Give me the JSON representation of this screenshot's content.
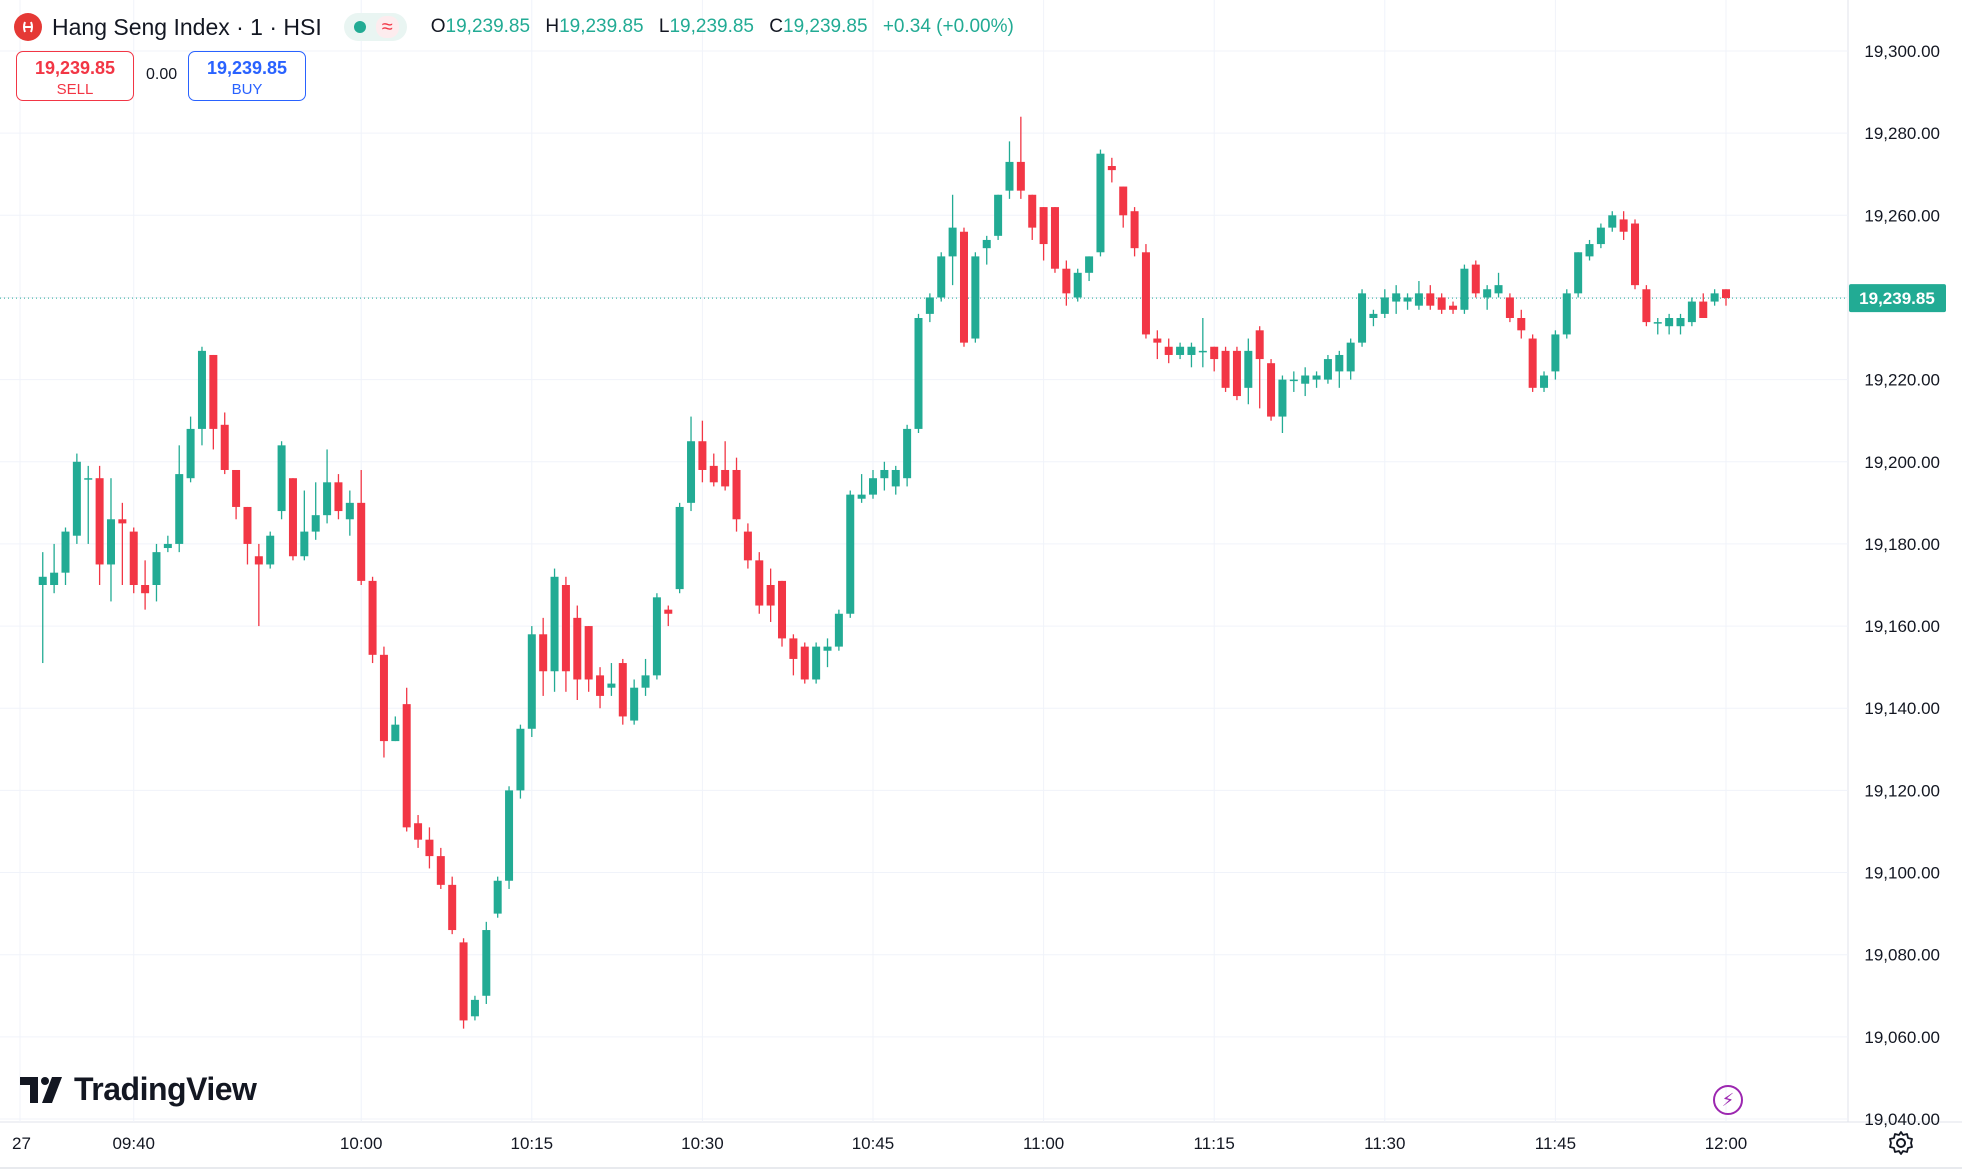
{
  "header": {
    "title": "Hang Seng Index · 1 · HSI",
    "ohlc": {
      "o_label": "O",
      "o": "19,239.85",
      "h_label": "H",
      "h": "19,239.85",
      "l_label": "L",
      "l": "19,239.85",
      "c_label": "C",
      "c": "19,239.85",
      "change": "+0.34 (+0.00%)"
    }
  },
  "trade": {
    "sell_price": "19,239.85",
    "sell_label": "SELL",
    "spread": "0.00",
    "buy_price": "19,239.85",
    "buy_label": "BUY"
  },
  "branding": {
    "logo_text": "TradingView"
  },
  "colors": {
    "up": "#22ab94",
    "down": "#f23645",
    "grid": "#f0f3fa",
    "last_price_bg": "#22ab94"
  },
  "icons": [
    "hsi-logo-icon",
    "market-status-icon",
    "flash-icon",
    "settings-icon",
    "tradingview-logo-icon"
  ],
  "chart_data": {
    "type": "candlestick",
    "title": "Hang Seng Index · 1 · HSI",
    "interval": "1",
    "ylim": [
      19040,
      19300
    ],
    "y_ticks": [
      19040,
      19060,
      19080,
      19100,
      19120,
      19140,
      19160,
      19180,
      19200,
      19220,
      19240,
      19260,
      19280,
      19300
    ],
    "y_tick_labels": [
      "19,040.00",
      "19,060.00",
      "19,080.00",
      "19,100.00",
      "19,120.00",
      "19,140.00",
      "19,160.00",
      "19,180.00",
      "19,200.00",
      "19,220.00",
      "19,240.00",
      "19,260.00",
      "19,280.00",
      "19,300.00"
    ],
    "x_tick_labels": [
      {
        "label": "27",
        "time": "09:30"
      },
      {
        "label": "09:40",
        "time": "09:40"
      },
      {
        "label": "10:00",
        "time": "10:00"
      },
      {
        "label": "10:15",
        "time": "10:15"
      },
      {
        "label": "10:30",
        "time": "10:30"
      },
      {
        "label": "10:45",
        "time": "10:45"
      },
      {
        "label": "11:00",
        "time": "11:00"
      },
      {
        "label": "11:15",
        "time": "11:15"
      },
      {
        "label": "11:30",
        "time": "11:30"
      },
      {
        "label": "11:45",
        "time": "11:45"
      },
      {
        "label": "12:00",
        "time": "12:00"
      }
    ],
    "last_price": 19239.85,
    "last_price_label": "19,239.85",
    "grid": true,
    "candles": [
      {
        "t": "09:32",
        "o": 19170,
        "h": 19178,
        "l": 19151,
        "c": 19172
      },
      {
        "t": "09:33",
        "o": 19170,
        "h": 19180,
        "l": 19168,
        "c": 19173
      },
      {
        "t": "09:34",
        "o": 19173,
        "h": 19184,
        "l": 19170,
        "c": 19183
      },
      {
        "t": "09:35",
        "o": 19182,
        "h": 19202,
        "l": 19180,
        "c": 19200
      },
      {
        "t": "09:36",
        "o": 19196,
        "h": 19199,
        "l": 19180,
        "c": 19196
      },
      {
        "t": "09:37",
        "o": 19196,
        "h": 19199,
        "l": 19170,
        "c": 19175
      },
      {
        "t": "09:38",
        "o": 19175,
        "h": 19196,
        "l": 19166,
        "c": 19186
      },
      {
        "t": "09:39",
        "o": 19186,
        "h": 19190,
        "l": 19170,
        "c": 19185
      },
      {
        "t": "09:40",
        "o": 19183,
        "h": 19184,
        "l": 19168,
        "c": 19170
      },
      {
        "t": "09:41",
        "o": 19170,
        "h": 19176,
        "l": 19164,
        "c": 19168
      },
      {
        "t": "09:42",
        "o": 19170,
        "h": 19180,
        "l": 19166,
        "c": 19178
      },
      {
        "t": "09:43",
        "o": 19179,
        "h": 19182,
        "l": 19178,
        "c": 19180
      },
      {
        "t": "09:44",
        "o": 19180,
        "h": 19204,
        "l": 19178,
        "c": 19197
      },
      {
        "t": "09:45",
        "o": 19196,
        "h": 19211,
        "l": 19195,
        "c": 19208
      },
      {
        "t": "09:46",
        "o": 19208,
        "h": 19228,
        "l": 19204,
        "c": 19227
      },
      {
        "t": "09:47",
        "o": 19226,
        "h": 19226,
        "l": 19203,
        "c": 19208
      },
      {
        "t": "09:48",
        "o": 19209,
        "h": 19212,
        "l": 19197,
        "c": 19198
      },
      {
        "t": "09:49",
        "o": 19198,
        "h": 19198,
        "l": 19186,
        "c": 19189
      },
      {
        "t": "09:50",
        "o": 19189,
        "h": 19189,
        "l": 19175,
        "c": 19180
      },
      {
        "t": "09:51",
        "o": 19177,
        "h": 19180,
        "l": 19160,
        "c": 19175
      },
      {
        "t": "09:52",
        "o": 19175,
        "h": 19183,
        "l": 19174,
        "c": 19182
      },
      {
        "t": "09:53",
        "o": 19188,
        "h": 19205,
        "l": 19186,
        "c": 19204
      },
      {
        "t": "09:54",
        "o": 19196,
        "h": 19196,
        "l": 19176,
        "c": 19177
      },
      {
        "t": "09:55",
        "o": 19177,
        "h": 19193,
        "l": 19176,
        "c": 19183
      },
      {
        "t": "09:56",
        "o": 19183,
        "h": 19195,
        "l": 19181,
        "c": 19187
      },
      {
        "t": "09:57",
        "o": 19187,
        "h": 19203,
        "l": 19185,
        "c": 19195
      },
      {
        "t": "09:58",
        "o": 19195,
        "h": 19197,
        "l": 19186,
        "c": 19188
      },
      {
        "t": "09:59",
        "o": 19186,
        "h": 19193,
        "l": 19182,
        "c": 19190
      },
      {
        "t": "10:00",
        "o": 19190,
        "h": 19198,
        "l": 19170,
        "c": 19171
      },
      {
        "t": "10:01",
        "o": 19171,
        "h": 19172,
        "l": 19151,
        "c": 19153
      },
      {
        "t": "10:02",
        "o": 19153,
        "h": 19155,
        "l": 19128,
        "c": 19132
      },
      {
        "t": "10:03",
        "o": 19132,
        "h": 19138,
        "l": 19132,
        "c": 19136
      },
      {
        "t": "10:04",
        "o": 19141,
        "h": 19145,
        "l": 19110,
        "c": 19111
      },
      {
        "t": "10:05",
        "o": 19112,
        "h": 19114,
        "l": 19106,
        "c": 19108
      },
      {
        "t": "10:06",
        "o": 19108,
        "h": 19111,
        "l": 19101,
        "c": 19104
      },
      {
        "t": "10:07",
        "o": 19104,
        "h": 19106,
        "l": 19096,
        "c": 19097
      },
      {
        "t": "10:08",
        "o": 19097,
        "h": 19099,
        "l": 19085,
        "c": 19086
      },
      {
        "t": "10:09",
        "o": 19083,
        "h": 19084,
        "l": 19062,
        "c": 19064
      },
      {
        "t": "10:10",
        "o": 19065,
        "h": 19070,
        "l": 19064,
        "c": 19069
      },
      {
        "t": "10:11",
        "o": 19070,
        "h": 19088,
        "l": 19068,
        "c": 19086
      },
      {
        "t": "10:12",
        "o": 19090,
        "h": 19099,
        "l": 19089,
        "c": 19098
      },
      {
        "t": "10:13",
        "o": 19098,
        "h": 19121,
        "l": 19096,
        "c": 19120
      },
      {
        "t": "10:14",
        "o": 19120,
        "h": 19136,
        "l": 19118,
        "c": 19135
      },
      {
        "t": "10:15",
        "o": 19135,
        "h": 19160,
        "l": 19133,
        "c": 19158
      },
      {
        "t": "10:16",
        "o": 19158,
        "h": 19162,
        "l": 19143,
        "c": 19149
      },
      {
        "t": "10:17",
        "o": 19149,
        "h": 19174,
        "l": 19144,
        "c": 19172
      },
      {
        "t": "10:18",
        "o": 19170,
        "h": 19172,
        "l": 19144,
        "c": 19149
      },
      {
        "t": "10:19",
        "o": 19162,
        "h": 19165,
        "l": 19142,
        "c": 19147
      },
      {
        "t": "10:20",
        "o": 19160,
        "h": 19160,
        "l": 19144,
        "c": 19147
      },
      {
        "t": "10:21",
        "o": 19148,
        "h": 19150,
        "l": 19140,
        "c": 19143
      },
      {
        "t": "10:22",
        "o": 19145,
        "h": 19151,
        "l": 19143,
        "c": 19146
      },
      {
        "t": "10:23",
        "o": 19151,
        "h": 19152,
        "l": 19136,
        "c": 19138
      },
      {
        "t": "10:24",
        "o": 19137,
        "h": 19147,
        "l": 19136,
        "c": 19145
      },
      {
        "t": "10:25",
        "o": 19145,
        "h": 19152,
        "l": 19143,
        "c": 19148
      },
      {
        "t": "10:26",
        "o": 19148,
        "h": 19168,
        "l": 19147,
        "c": 19167
      },
      {
        "t": "10:27",
        "o": 19164,
        "h": 19165,
        "l": 19160,
        "c": 19163
      },
      {
        "t": "10:28",
        "o": 19169,
        "h": 19190,
        "l": 19168,
        "c": 19189
      },
      {
        "t": "10:29",
        "o": 19190,
        "h": 19211,
        "l": 19188,
        "c": 19205
      },
      {
        "t": "10:30",
        "o": 19205,
        "h": 19210,
        "l": 19195,
        "c": 19198
      },
      {
        "t": "10:31",
        "o": 19199,
        "h": 19202,
        "l": 19194,
        "c": 19195
      },
      {
        "t": "10:32",
        "o": 19198,
        "h": 19205,
        "l": 19193,
        "c": 19194
      },
      {
        "t": "10:33",
        "o": 19198,
        "h": 19201,
        "l": 19183,
        "c": 19186
      },
      {
        "t": "10:34",
        "o": 19183,
        "h": 19185,
        "l": 19174,
        "c": 19176
      },
      {
        "t": "10:35",
        "o": 19176,
        "h": 19178,
        "l": 19163,
        "c": 19165
      },
      {
        "t": "10:36",
        "o": 19170,
        "h": 19174,
        "l": 19161,
        "c": 19165
      },
      {
        "t": "10:37",
        "o": 19171,
        "h": 19171,
        "l": 19155,
        "c": 19157
      },
      {
        "t": "10:38",
        "o": 19157,
        "h": 19158,
        "l": 19148,
        "c": 19152
      },
      {
        "t": "10:39",
        "o": 19155,
        "h": 19156,
        "l": 19146,
        "c": 19147
      },
      {
        "t": "10:40",
        "o": 19147,
        "h": 19156,
        "l": 19146,
        "c": 19155
      },
      {
        "t": "10:41",
        "o": 19154,
        "h": 19157,
        "l": 19150,
        "c": 19155
      },
      {
        "t": "10:42",
        "o": 19155,
        "h": 19164,
        "l": 19154,
        "c": 19163
      },
      {
        "t": "10:43",
        "o": 19163,
        "h": 19193,
        "l": 19162,
        "c": 19192
      },
      {
        "t": "10:44",
        "o": 19191,
        "h": 19197,
        "l": 19190,
        "c": 19192
      },
      {
        "t": "10:45",
        "o": 19192,
        "h": 19198,
        "l": 19191,
        "c": 19196
      },
      {
        "t": "10:46",
        "o": 19196,
        "h": 19200,
        "l": 19193,
        "c": 19198
      },
      {
        "t": "10:47",
        "o": 19194,
        "h": 19199,
        "l": 19192,
        "c": 19198
      },
      {
        "t": "10:48",
        "o": 19196,
        "h": 19209,
        "l": 19194,
        "c": 19208
      },
      {
        "t": "10:49",
        "o": 19208,
        "h": 19236,
        "l": 19207,
        "c": 19235
      },
      {
        "t": "10:50",
        "o": 19236,
        "h": 19241,
        "l": 19234,
        "c": 19240
      },
      {
        "t": "10:51",
        "o": 19240,
        "h": 19251,
        "l": 19239,
        "c": 19250
      },
      {
        "t": "10:52",
        "o": 19250,
        "h": 19265,
        "l": 19243,
        "c": 19257
      },
      {
        "t": "10:53",
        "o": 19256,
        "h": 19257,
        "l": 19228,
        "c": 19229
      },
      {
        "t": "10:54",
        "o": 19230,
        "h": 19251,
        "l": 19229,
        "c": 19250
      },
      {
        "t": "10:55",
        "o": 19252,
        "h": 19255,
        "l": 19248,
        "c": 19254
      },
      {
        "t": "10:56",
        "o": 19255,
        "h": 19265,
        "l": 19254,
        "c": 19265
      },
      {
        "t": "10:57",
        "o": 19266,
        "h": 19278,
        "l": 19264,
        "c": 19273
      },
      {
        "t": "10:58",
        "o": 19273,
        "h": 19284,
        "l": 19264,
        "c": 19266
      },
      {
        "t": "10:59",
        "o": 19265,
        "h": 19265,
        "l": 19254,
        "c": 19257
      },
      {
        "t": "11:00",
        "o": 19262,
        "h": 19262,
        "l": 19249,
        "c": 19253
      },
      {
        "t": "11:01",
        "o": 19262,
        "h": 19262,
        "l": 19246,
        "c": 19247
      },
      {
        "t": "11:02",
        "o": 19247,
        "h": 19249,
        "l": 19238,
        "c": 19241
      },
      {
        "t": "11:03",
        "o": 19240,
        "h": 19247,
        "l": 19239,
        "c": 19246
      },
      {
        "t": "11:04",
        "o": 19246,
        "h": 19250,
        "l": 19244,
        "c": 19250
      },
      {
        "t": "11:05",
        "o": 19251,
        "h": 19276,
        "l": 19250,
        "c": 19275
      },
      {
        "t": "11:06",
        "o": 19272,
        "h": 19274,
        "l": 19268,
        "c": 19271
      },
      {
        "t": "11:07",
        "o": 19267,
        "h": 19267,
        "l": 19257,
        "c": 19260
      },
      {
        "t": "11:08",
        "o": 19261,
        "h": 19262,
        "l": 19250,
        "c": 19252
      },
      {
        "t": "11:09",
        "o": 19251,
        "h": 19253,
        "l": 19230,
        "c": 19231
      },
      {
        "t": "11:10",
        "o": 19230,
        "h": 19232,
        "l": 19225,
        "c": 19229
      },
      {
        "t": "11:11",
        "o": 19228,
        "h": 19230,
        "l": 19224,
        "c": 19226
      },
      {
        "t": "11:12",
        "o": 19226,
        "h": 19229,
        "l": 19225,
        "c": 19228
      },
      {
        "t": "11:13",
        "o": 19226,
        "h": 19229,
        "l": 19223,
        "c": 19228
      },
      {
        "t": "11:14",
        "o": 19227,
        "h": 19235,
        "l": 19223,
        "c": 19227
      },
      {
        "t": "11:15",
        "o": 19228,
        "h": 19228,
        "l": 19222,
        "c": 19225
      },
      {
        "t": "11:16",
        "o": 19227,
        "h": 19228,
        "l": 19217,
        "c": 19218
      },
      {
        "t": "11:17",
        "o": 19227,
        "h": 19228,
        "l": 19215,
        "c": 19216
      },
      {
        "t": "11:18",
        "o": 19218,
        "h": 19230,
        "l": 19214,
        "c": 19227
      },
      {
        "t": "11:19",
        "o": 19232,
        "h": 19233,
        "l": 19213,
        "c": 19225
      },
      {
        "t": "11:20",
        "o": 19224,
        "h": 19225,
        "l": 19210,
        "c": 19211
      },
      {
        "t": "11:21",
        "o": 19211,
        "h": 19221,
        "l": 19207,
        "c": 19220
      },
      {
        "t": "11:22",
        "o": 19220,
        "h": 19222,
        "l": 19217,
        "c": 19220
      },
      {
        "t": "11:23",
        "o": 19219,
        "h": 19223,
        "l": 19216,
        "c": 19221
      },
      {
        "t": "11:24",
        "o": 19220,
        "h": 19222,
        "l": 19218,
        "c": 19221
      },
      {
        "t": "11:25",
        "o": 19220,
        "h": 19226,
        "l": 19219,
        "c": 19225
      },
      {
        "t": "11:26",
        "o": 19222,
        "h": 19227,
        "l": 19218,
        "c": 19226
      },
      {
        "t": "11:27",
        "o": 19222,
        "h": 19230,
        "l": 19220,
        "c": 19229
      },
      {
        "t": "11:28",
        "o": 19229,
        "h": 19242,
        "l": 19228,
        "c": 19241
      },
      {
        "t": "11:29",
        "o": 19235,
        "h": 19237,
        "l": 19233,
        "c": 19236
      },
      {
        "t": "11:30",
        "o": 19236,
        "h": 19242,
        "l": 19235,
        "c": 19240
      },
      {
        "t": "11:31",
        "o": 19239,
        "h": 19243,
        "l": 19236,
        "c": 19241
      },
      {
        "t": "11:32",
        "o": 19239,
        "h": 19241,
        "l": 19237,
        "c": 19240
      },
      {
        "t": "11:33",
        "o": 19238,
        "h": 19244,
        "l": 19237,
        "c": 19241
      },
      {
        "t": "11:34",
        "o": 19241,
        "h": 19243,
        "l": 19237,
        "c": 19238
      },
      {
        "t": "11:35",
        "o": 19240,
        "h": 19241,
        "l": 19236,
        "c": 19237
      },
      {
        "t": "11:36",
        "o": 19238,
        "h": 19239,
        "l": 19236,
        "c": 19237
      },
      {
        "t": "11:37",
        "o": 19237,
        "h": 19248,
        "l": 19236,
        "c": 19247
      },
      {
        "t": "11:38",
        "o": 19248,
        "h": 19249,
        "l": 19240,
        "c": 19241
      },
      {
        "t": "11:39",
        "o": 19240,
        "h": 19243,
        "l": 19237,
        "c": 19242
      },
      {
        "t": "11:40",
        "o": 19241,
        "h": 19246,
        "l": 19240,
        "c": 19243
      },
      {
        "t": "11:41",
        "o": 19240,
        "h": 19241,
        "l": 19234,
        "c": 19235
      },
      {
        "t": "11:42",
        "o": 19235,
        "h": 19237,
        "l": 19230,
        "c": 19232
      },
      {
        "t": "11:43",
        "o": 19230,
        "h": 19231,
        "l": 19217,
        "c": 19218
      },
      {
        "t": "11:44",
        "o": 19218,
        "h": 19222,
        "l": 19217,
        "c": 19221
      },
      {
        "t": "11:45",
        "o": 19222,
        "h": 19232,
        "l": 19220,
        "c": 19231
      },
      {
        "t": "11:46",
        "o": 19231,
        "h": 19242,
        "l": 19230,
        "c": 19241
      },
      {
        "t": "11:47",
        "o": 19241,
        "h": 19251,
        "l": 19240,
        "c": 19251
      },
      {
        "t": "11:48",
        "o": 19250,
        "h": 19254,
        "l": 19249,
        "c": 19253
      },
      {
        "t": "11:49",
        "o": 19253,
        "h": 19258,
        "l": 19252,
        "c": 19257
      },
      {
        "t": "11:50",
        "o": 19257,
        "h": 19261,
        "l": 19256,
        "c": 19260
      },
      {
        "t": "11:51",
        "o": 19259,
        "h": 19261,
        "l": 19254,
        "c": 19256
      },
      {
        "t": "11:52",
        "o": 19258,
        "h": 19259,
        "l": 19242,
        "c": 19243
      },
      {
        "t": "11:53",
        "o": 19242,
        "h": 19243,
        "l": 19233,
        "c": 19234
      },
      {
        "t": "11:54",
        "o": 19234,
        "h": 19235,
        "l": 19231,
        "c": 19234
      },
      {
        "t": "11:55",
        "o": 19233,
        "h": 19236,
        "l": 19231,
        "c": 19235
      },
      {
        "t": "11:56",
        "o": 19233,
        "h": 19236,
        "l": 19231,
        "c": 19235
      },
      {
        "t": "11:57",
        "o": 19234,
        "h": 19240,
        "l": 19233,
        "c": 19239
      },
      {
        "t": "11:58",
        "o": 19239,
        "h": 19241,
        "l": 19235,
        "c": 19235
      },
      {
        "t": "11:59",
        "o": 19239,
        "h": 19242,
        "l": 19238,
        "c": 19241
      },
      {
        "t": "12:00",
        "o": 19242,
        "h": 19242,
        "l": 19238,
        "c": 19239.85
      }
    ]
  }
}
